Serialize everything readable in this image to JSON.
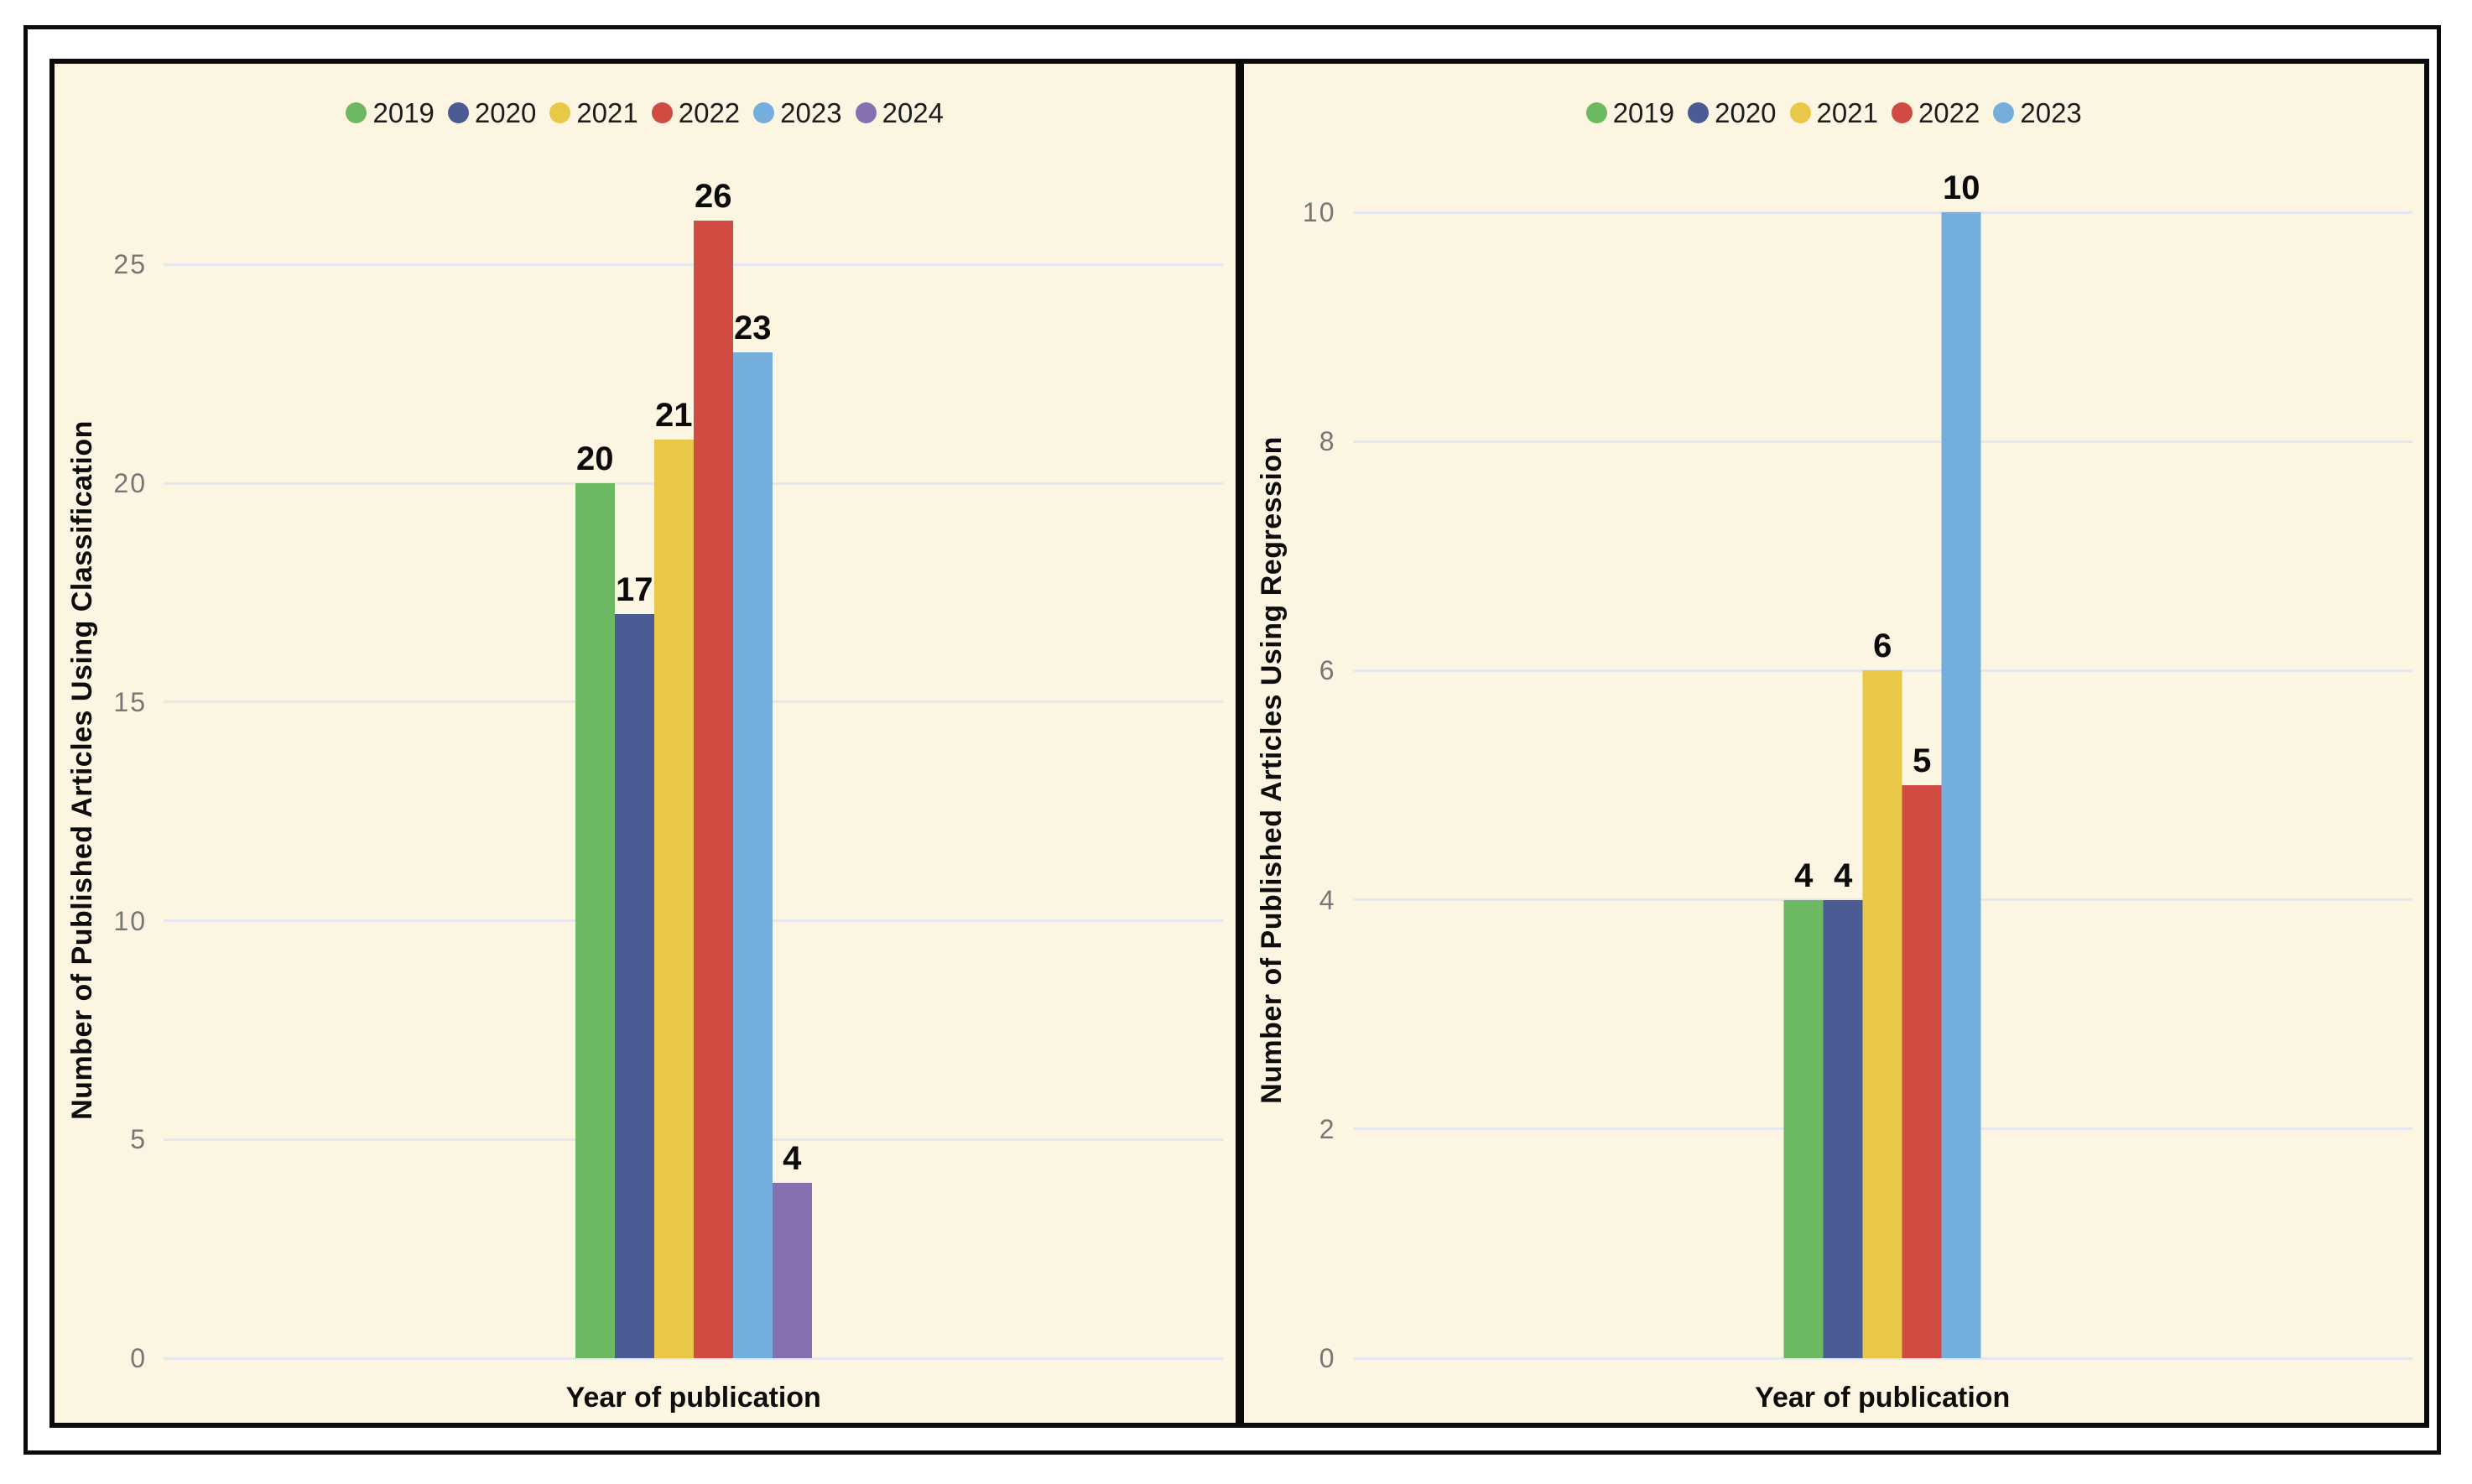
{
  "style": {
    "page_background": "#ffffff",
    "panel_background": "#fcf5e1",
    "border_color": "#0a0a0a",
    "grid_color": "#e4e7ed",
    "tick_text_color": "#767676",
    "label_text_color": "#0d0d0d"
  },
  "chart_data": [
    {
      "type": "bar",
      "ylabel": "Number of Published Articles Using Classification",
      "xlabel": "Year of publication",
      "categories": [
        "2019",
        "2020",
        "2021",
        "2022",
        "2023",
        "2024"
      ],
      "values": [
        20,
        17,
        21,
        26,
        23,
        4
      ],
      "bar_labels": [
        "20",
        "17",
        "21",
        "26",
        "23",
        "4"
      ],
      "colors": [
        "#6db863",
        "#4b5b93",
        "#e9c847",
        "#d04c43",
        "#74aedd",
        "#8770af"
      ],
      "legend": [
        "2019",
        "2020",
        "2021",
        "2022",
        "2023",
        "2024"
      ],
      "legend_position": "top-center",
      "yticks": [
        0,
        5,
        10,
        15,
        20,
        25
      ],
      "ylim": [
        0,
        26.7
      ],
      "grid": true,
      "xticklabels_shown": false
    },
    {
      "type": "bar",
      "ylabel": "Number of Published Articles Using Regression",
      "xlabel": "Year of publication",
      "categories": [
        "2019",
        "2020",
        "2021",
        "2022",
        "2023"
      ],
      "values": [
        4,
        4,
        6,
        5,
        10
      ],
      "bar_labels": [
        "4",
        "4",
        "6",
        "5",
        "10"
      ],
      "colors": [
        "#6db863",
        "#4b5b93",
        "#e9c847",
        "#d04c43",
        "#74aedd"
      ],
      "legend": [
        "2019",
        "2020",
        "2021",
        "2022",
        "2023"
      ],
      "legend_position": "top-center",
      "yticks": [
        0,
        2,
        4,
        6,
        8,
        10
      ],
      "ylim": [
        0,
        10.2
      ],
      "grid": true,
      "xticklabels_shown": false
    }
  ]
}
